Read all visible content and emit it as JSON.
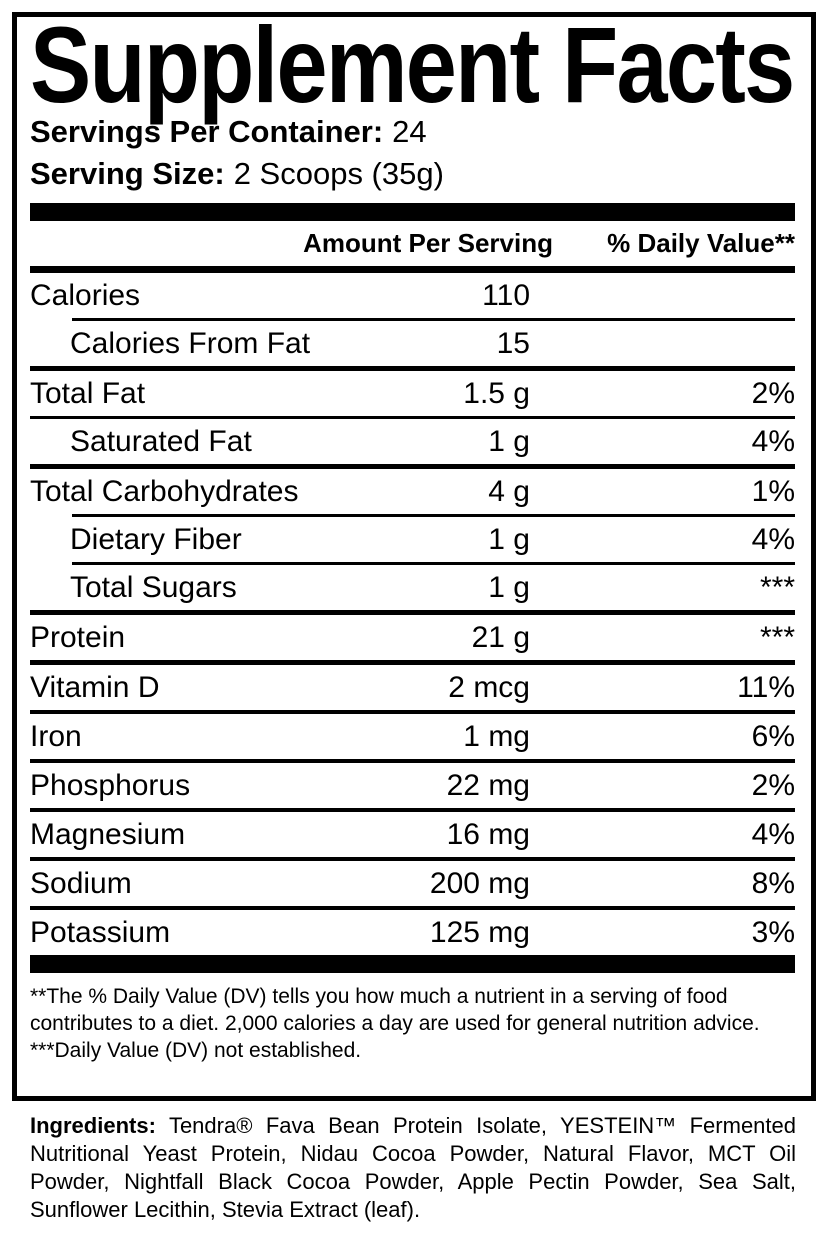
{
  "label": {
    "title": "Supplement Facts",
    "servings_per_container": {
      "label": "Servings Per Container:",
      "value": "24"
    },
    "serving_size": {
      "label": "Serving Size:",
      "value": "2 Scoops (35g)"
    },
    "columns": {
      "amount": "Amount Per Serving",
      "daily_value": "% Daily Value**"
    },
    "rows": [
      {
        "name": "Calories",
        "amount": "110",
        "dv": ""
      },
      {
        "name": "Calories From Fat",
        "amount": "15",
        "dv": ""
      },
      {
        "name": "Total Fat",
        "amount": "1.5 g",
        "dv": "2%"
      },
      {
        "name": "Saturated Fat",
        "amount": "1 g",
        "dv": "4%"
      },
      {
        "name": "Total Carbohydrates",
        "amount": "4 g",
        "dv": "1%"
      },
      {
        "name": "Dietary Fiber",
        "amount": "1 g",
        "dv": "4%"
      },
      {
        "name": "Total Sugars",
        "amount": "1 g",
        "dv": "***"
      },
      {
        "name": "Protein",
        "amount": "21 g",
        "dv": "***"
      },
      {
        "name": "Vitamin D",
        "amount": "2 mcg",
        "dv": "11%"
      },
      {
        "name": "Iron",
        "amount": "1 mg",
        "dv": "6%"
      },
      {
        "name": "Phosphorus",
        "amount": "22 mg",
        "dv": "2%"
      },
      {
        "name": "Magnesium",
        "amount": "16 mg",
        "dv": "4%"
      },
      {
        "name": "Sodium",
        "amount": "200 mg",
        "dv": "8%"
      },
      {
        "name": "Potassium",
        "amount": "125 mg",
        "dv": "3%"
      }
    ],
    "footnotes": [
      "**The % Daily Value (DV) tells you how much a nutrient in a serving of food contributes to a diet. 2,000 calories a day are used for general nutrition advice.",
      "***Daily Value (DV) not established."
    ],
    "ingredients": {
      "label": "Ingredients:",
      "text": "Tendra® Fava Bean Protein Isolate, YESTEIN™ Fermented Nutritional Yeast Protein, Nidau Cocoa Powder, Natural Flavor, MCT Oil Powder, Nightfall Black Cocoa Powder, Apple Pectin Powder, Sea Salt, Sunflower Lecithin, Stevia Extract (leaf)."
    }
  }
}
